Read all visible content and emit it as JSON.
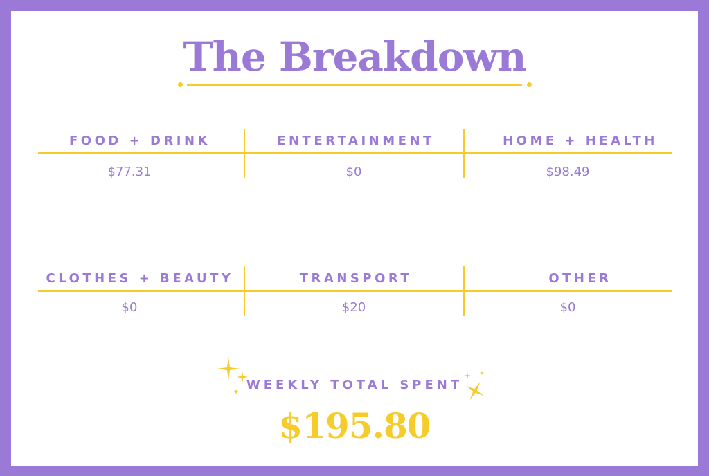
{
  "title": "The Breakdown",
  "categories": [
    {
      "label": "FOOD + DRINK",
      "value": "$77.31"
    },
    {
      "label": "ENTERTAINMENT",
      "value": "$0"
    },
    {
      "label": "HOME + HEALTH",
      "value": "$98.49"
    },
    {
      "label": "CLOTHES + BEAUTY",
      "value": "$0"
    },
    {
      "label": "TRANSPORT",
      "value": "$20"
    },
    {
      "label": "OTHER",
      "value": "$0"
    }
  ],
  "total": {
    "label": "WEEKLY TOTAL SPENT",
    "value": "$195.80"
  },
  "colors": {
    "purple": "#9a7ad6",
    "yellow": "#f5cc2a"
  },
  "icons": [
    "sparkle-icon"
  ]
}
